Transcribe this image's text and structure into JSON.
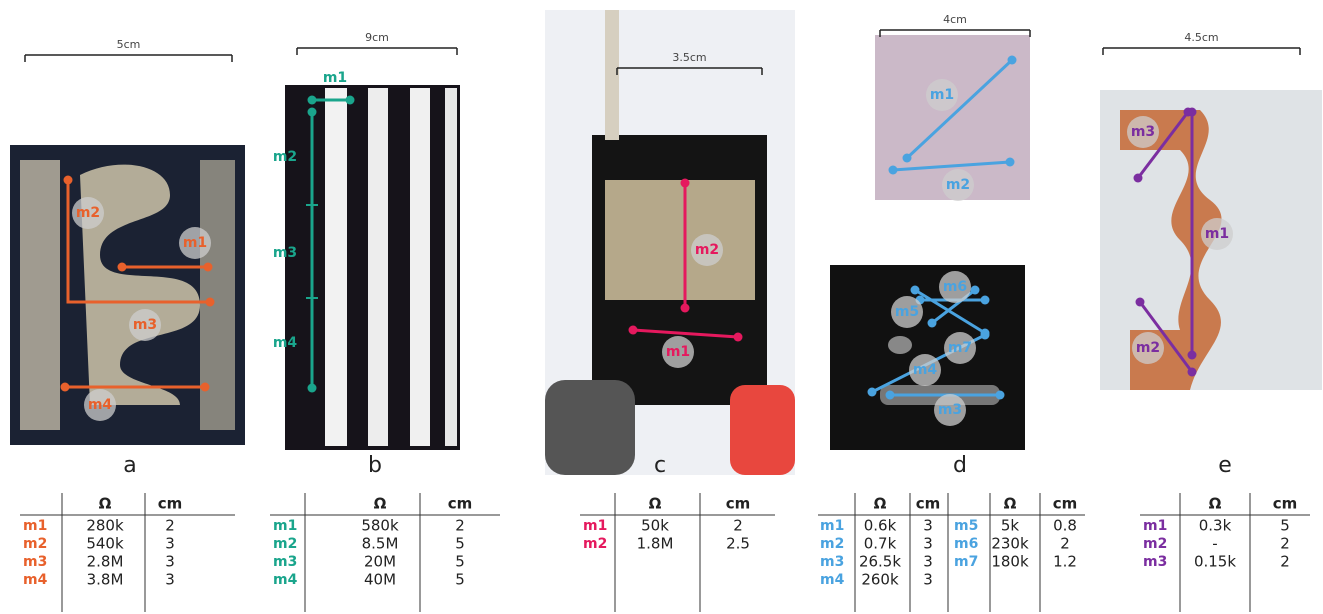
{
  "panels": [
    {
      "scale": "5cm",
      "letter": "a",
      "marks": [
        "m2",
        "m1",
        "m3",
        "m4"
      ],
      "table": {
        "headers": [
          "Ω",
          "cm"
        ],
        "rows": [
          [
            "m1",
            "280k",
            "2"
          ],
          [
            "m2",
            "540k",
            "3"
          ],
          [
            "m3",
            "2.8M",
            "3"
          ],
          [
            "m4",
            "3.8M",
            "3"
          ]
        ]
      }
    },
    {
      "scale": "9cm",
      "letter": "b",
      "marks": [
        "m1",
        "m2",
        "m3",
        "m4"
      ],
      "table": {
        "headers": [
          "Ω",
          "cm"
        ],
        "rows": [
          [
            "m1",
            "580k",
            "2"
          ],
          [
            "m2",
            "8.5M",
            "5"
          ],
          [
            "m3",
            "20M",
            "5"
          ],
          [
            "m4",
            "40M",
            "5"
          ]
        ]
      }
    },
    {
      "scale": "3.5cm",
      "letter": "c",
      "marks": [
        "m2",
        "m1"
      ],
      "table": {
        "headers": [
          "Ω",
          "cm"
        ],
        "rows": [
          [
            "m1",
            "50k",
            "2"
          ],
          [
            "m2",
            "1.8M",
            "2.5"
          ]
        ]
      }
    },
    {
      "scale": "4cm",
      "letter": "d",
      "marks": [
        "m1",
        "m2",
        "m6",
        "m5",
        "m7",
        "m4",
        "m3"
      ],
      "table": {
        "headers": [
          "Ω",
          "cm",
          "Ω",
          "cm"
        ],
        "rows": [
          [
            "m1",
            "0.6k",
            "3",
            "m5",
            "5k",
            "0.8"
          ],
          [
            "m2",
            "0.7k",
            "3",
            "m6",
            "230k",
            "2"
          ],
          [
            "m3",
            "26.5k",
            "3",
            "m7",
            "180k",
            "1.2"
          ],
          [
            "m4",
            "260k",
            "3"
          ]
        ]
      }
    },
    {
      "scale": "4.5cm",
      "letter": "e",
      "marks": [
        "m3",
        "m1",
        "m2"
      ],
      "table": {
        "headers": [
          "Ω",
          "cm"
        ],
        "rows": [
          [
            "m1",
            "0.3k",
            "5"
          ],
          [
            "m2",
            "-",
            "2"
          ],
          [
            "m3",
            "0.15k",
            "2"
          ]
        ]
      }
    }
  ]
}
